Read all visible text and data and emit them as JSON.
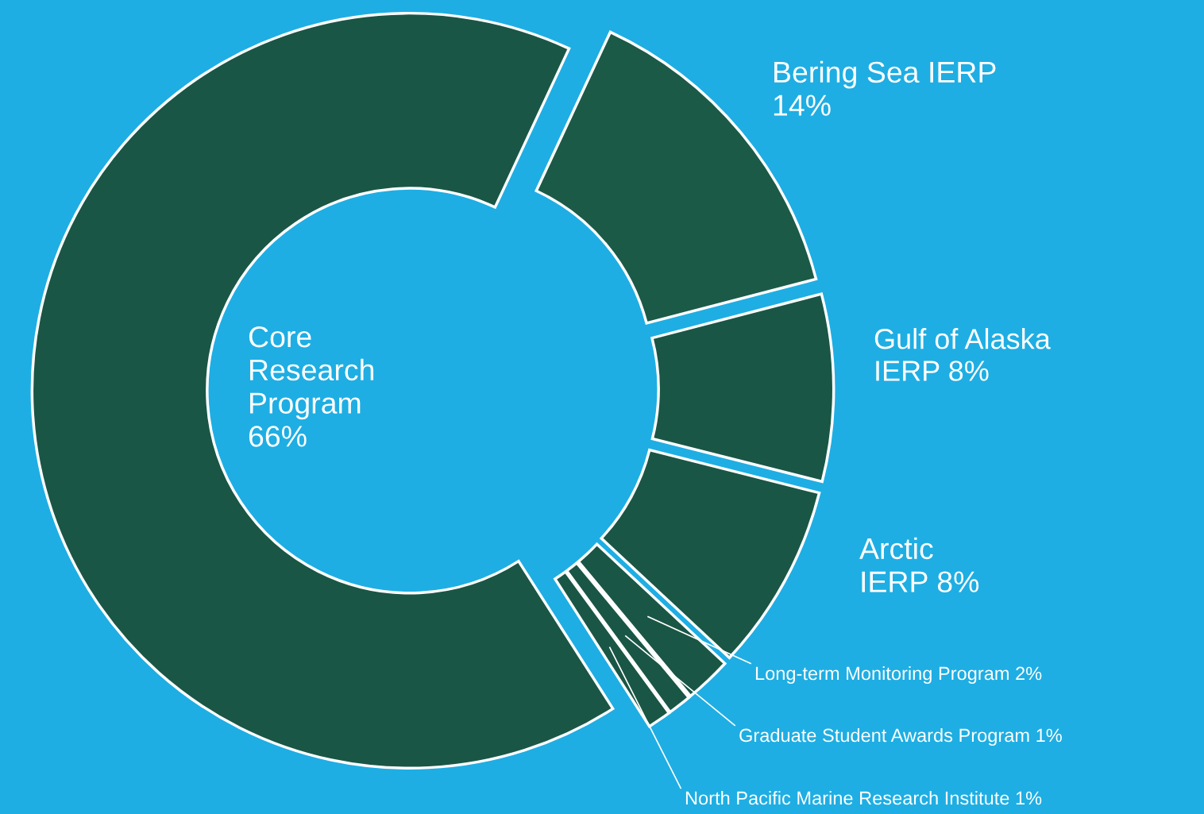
{
  "chart_data": {
    "type": "donut",
    "categories": [
      "Bering Sea IERP",
      "Gulf of Alaska IERP",
      "Arctic IERP",
      "Long-term Monitoring Program",
      "Graduate Student Awards Program",
      "North Pacific Marine Research Institute",
      "Core Research Program"
    ],
    "values": [
      14,
      8,
      8,
      2,
      1,
      1,
      66
    ],
    "colors": [
      "#1b5a47",
      "#1a5645",
      "#1a5645",
      "#1a5645",
      "#1a5645",
      "#1a5645",
      "#1a5645"
    ],
    "value_labels": [
      "14%",
      "8%",
      "8%",
      "2%",
      "1%",
      "1%",
      "66%"
    ]
  }
}
